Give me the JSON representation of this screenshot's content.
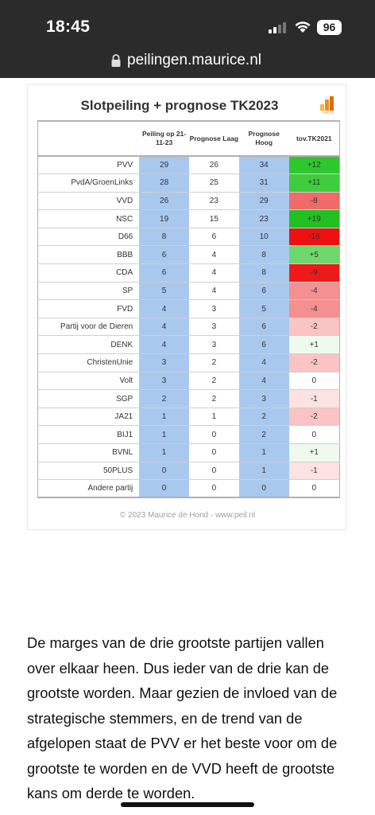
{
  "status_bar": {
    "time": "18:45",
    "battery": "96"
  },
  "browser": {
    "url": "peilingen.maurice.nl"
  },
  "card": {
    "title": "Slotpeiling + prognose TK2023",
    "logo_text": "Peil.nl",
    "columns": [
      "",
      "Peiling op 21-11-23",
      "Prognose Laag",
      "Prognose Hoog",
      "tov.TK2021"
    ],
    "rows": [
      {
        "party": "PVV",
        "peiling": "29",
        "laag": "26",
        "hoog": "34",
        "tov": "+12",
        "tov_color": "#2ec82e"
      },
      {
        "party": "PvdA/GroenLinks",
        "peiling": "28",
        "laag": "25",
        "hoog": "31",
        "tov": "+11",
        "tov_color": "#3fcc3f"
      },
      {
        "party": "VVD",
        "peiling": "26",
        "laag": "23",
        "hoog": "29",
        "tov": "-8",
        "tov_color": "#f06a6a"
      },
      {
        "party": "NSC",
        "peiling": "19",
        "laag": "15",
        "hoog": "23",
        "tov": "+19",
        "tov_color": "#22c022"
      },
      {
        "party": "D66",
        "peiling": "8",
        "laag": "6",
        "hoog": "10",
        "tov": "-16",
        "tov_color": "#ee1111"
      },
      {
        "party": "BBB",
        "peiling": "6",
        "laag": "4",
        "hoog": "8",
        "tov": "+5",
        "tov_color": "#6ed86e"
      },
      {
        "party": "CDA",
        "peiling": "6",
        "laag": "4",
        "hoog": "8",
        "tov": "-9",
        "tov_color": "#ee1a1a"
      },
      {
        "party": "SP",
        "peiling": "5",
        "laag": "4",
        "hoog": "6",
        "tov": "-4",
        "tov_color": "#f59090"
      },
      {
        "party": "FVD",
        "peiling": "4",
        "laag": "3",
        "hoog": "5",
        "tov": "-4",
        "tov_color": "#f59090"
      },
      {
        "party": "Partij voor de Dieren",
        "peiling": "4",
        "laag": "3",
        "hoog": "6",
        "tov": "-2",
        "tov_color": "#fac4c4"
      },
      {
        "party": "DENK",
        "peiling": "4",
        "laag": "3",
        "hoog": "6",
        "tov": "+1",
        "tov_color": "#edfaed"
      },
      {
        "party": "ChristenUnie",
        "peiling": "3",
        "laag": "2",
        "hoog": "4",
        "tov": "-2",
        "tov_color": "#fac4c4"
      },
      {
        "party": "Volt",
        "peiling": "3",
        "laag": "2",
        "hoog": "4",
        "tov": "0",
        "tov_color": "#ffffff"
      },
      {
        "party": "SGP",
        "peiling": "2",
        "laag": "2",
        "hoog": "3",
        "tov": "-1",
        "tov_color": "#fde2e2"
      },
      {
        "party": "JA21",
        "peiling": "1",
        "laag": "1",
        "hoog": "2",
        "tov": "-2",
        "tov_color": "#fac4c4"
      },
      {
        "party": "BIJ1",
        "peiling": "1",
        "laag": "0",
        "hoog": "2",
        "tov": "0",
        "tov_color": "#ffffff"
      },
      {
        "party": "BVNL",
        "peiling": "1",
        "laag": "0",
        "hoog": "1",
        "tov": "+1",
        "tov_color": "#edfaed"
      },
      {
        "party": "50PLUS",
        "peiling": "0",
        "laag": "0",
        "hoog": "1",
        "tov": "-1",
        "tov_color": "#fde2e2"
      },
      {
        "party": "Andere partij",
        "peiling": "0",
        "laag": "0",
        "hoog": "0",
        "tov": "0",
        "tov_color": "#ffffff"
      }
    ],
    "copyright": "© 2023 Maurice de Hond - www.peil.nl"
  },
  "article": {
    "paragraph": "De marges van de drie grootste partijen vallen over elkaar heen. Dus ieder van de drie kan de grootste worden. Maar gezien de invloed van de strategische stemmers, en de trend van de afgelopen staat de PVV er het beste voor om de grootste te worden en de VVD heeft de grootste kans om derde te worden."
  },
  "colors": {
    "blue_column": "#a9c8ee",
    "header_bg": "#2b2b2b"
  }
}
